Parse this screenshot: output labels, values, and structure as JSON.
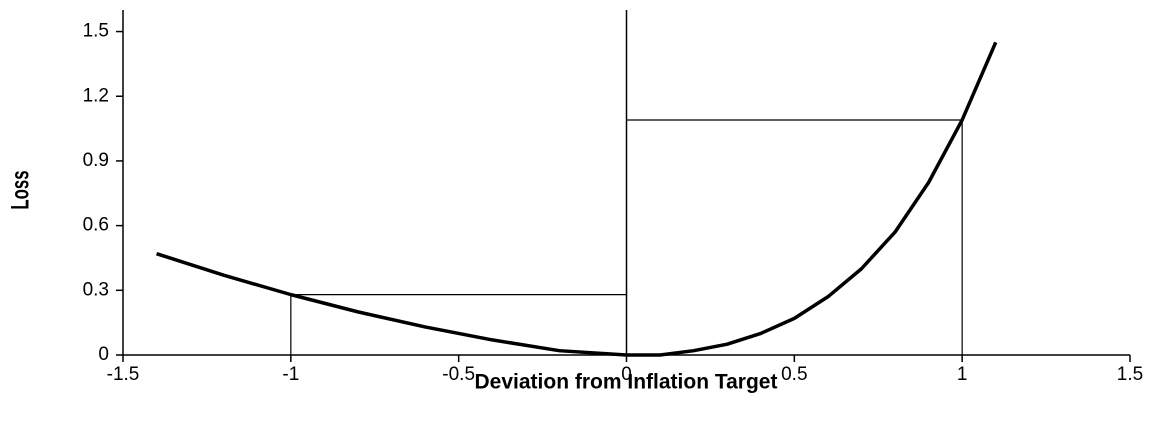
{
  "chart_data": {
    "type": "line",
    "xlabel": "Deviation from Inflation Target",
    "ylabel": "Loss",
    "x": [
      -1.4,
      -1.2,
      -1.0,
      -0.8,
      -0.6,
      -0.4,
      -0.2,
      0.0,
      0.1,
      0.2,
      0.3,
      0.4,
      0.5,
      0.6,
      0.7,
      0.8,
      0.9,
      1.0,
      1.1
    ],
    "series": [
      {
        "color": "#000000",
        "values": [
          0.47,
          0.37,
          0.28,
          0.2,
          0.13,
          0.07,
          0.02,
          0.0,
          0.0,
          0.02,
          0.05,
          0.1,
          0.17,
          0.27,
          0.4,
          0.57,
          0.8,
          1.09,
          1.45
        ]
      }
    ],
    "guides": [
      {
        "x": -1,
        "y": 0.28
      },
      {
        "x": 1,
        "y": 1.09
      }
    ],
    "xlim": [
      -1.5,
      1.5
    ],
    "xticks": [
      -1.5,
      -1,
      -0.5,
      0,
      0.5,
      1,
      1.5
    ],
    "ylim": [
      0,
      1.6
    ],
    "yticks": [
      0,
      0.3,
      0.6,
      0.9,
      1.2,
      1.5
    ]
  }
}
